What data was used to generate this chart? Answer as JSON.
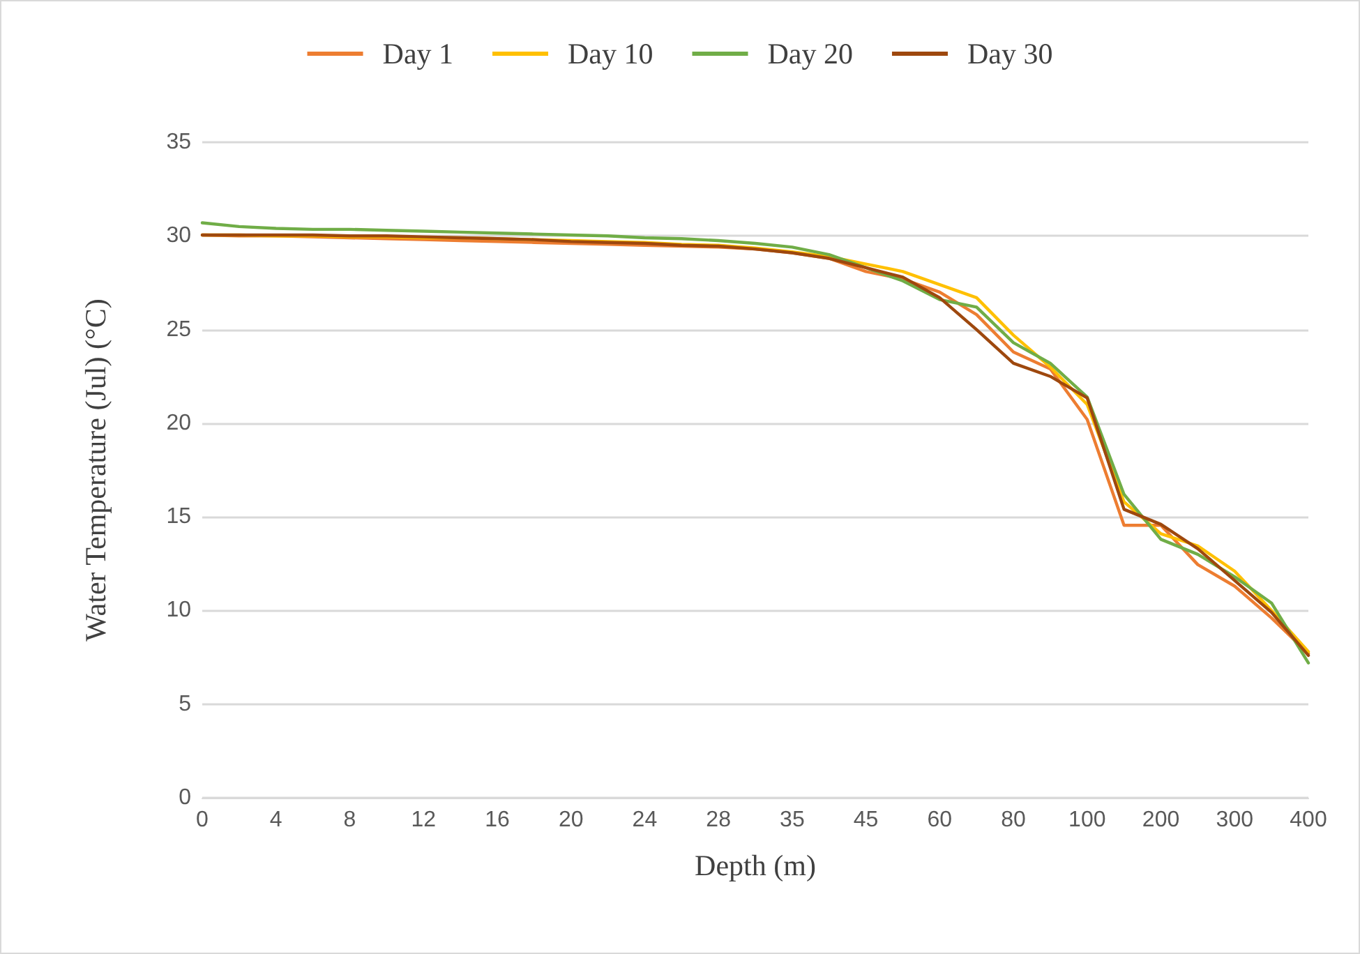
{
  "chart_data": {
    "type": "line",
    "xlabel": "Depth (m)",
    "ylabel": "Water Temperature (Jul) (°C)",
    "categories": [
      "0",
      null,
      "4",
      null,
      "8",
      null,
      "12",
      null,
      "16",
      null,
      "20",
      null,
      "24",
      null,
      "28",
      null,
      "35",
      null,
      "45",
      null,
      "60",
      null,
      "80",
      null,
      "100",
      null,
      "200",
      null,
      "300",
      null,
      "400"
    ],
    "series": [
      {
        "name": "Day 1",
        "color": "#ed7d31",
        "values": [
          30.05,
          30.0,
          30.0,
          29.95,
          29.9,
          29.85,
          29.8,
          29.75,
          29.7,
          29.65,
          29.6,
          29.55,
          29.5,
          29.45,
          29.4,
          29.3,
          29.1,
          28.8,
          28.1,
          27.7,
          27.0,
          25.8,
          23.8,
          22.9,
          20.2,
          14.55,
          14.55,
          12.45,
          11.3,
          9.6,
          7.7
        ]
      },
      {
        "name": "Day 10",
        "color": "#ffc000",
        "values": [
          30.05,
          30.05,
          30.0,
          30.0,
          29.95,
          29.95,
          29.9,
          29.9,
          29.85,
          29.8,
          29.75,
          29.7,
          29.65,
          29.55,
          29.5,
          29.35,
          29.15,
          28.9,
          28.5,
          28.1,
          27.4,
          26.7,
          24.7,
          23.0,
          21.0,
          15.8,
          14.1,
          13.45,
          12.1,
          10.0,
          7.8
        ]
      },
      {
        "name": "Day 20",
        "color": "#70ad47",
        "values": [
          30.7,
          30.5,
          30.4,
          30.35,
          30.35,
          30.3,
          30.25,
          30.2,
          30.15,
          30.1,
          30.05,
          30.0,
          29.9,
          29.85,
          29.75,
          29.6,
          29.4,
          29.0,
          28.3,
          27.6,
          26.6,
          26.2,
          24.3,
          23.2,
          21.4,
          16.2,
          13.8,
          13.0,
          11.8,
          10.4,
          7.2
        ]
      },
      {
        "name": "Day 30",
        "color": "#9e480e",
        "values": [
          30.05,
          30.05,
          30.05,
          30.05,
          30.0,
          30.0,
          29.95,
          29.9,
          29.85,
          29.8,
          29.7,
          29.65,
          29.6,
          29.5,
          29.45,
          29.3,
          29.1,
          28.8,
          28.3,
          27.8,
          26.7,
          25.0,
          23.2,
          22.5,
          21.35,
          15.4,
          14.6,
          13.3,
          11.6,
          9.9,
          7.6
        ]
      }
    ],
    "ylim": [
      0,
      35
    ],
    "yticks": [
      0,
      5,
      10,
      15,
      20,
      25,
      30,
      35
    ],
    "grid": "y",
    "legend": "top",
    "marker": "none",
    "line_style": "solid"
  }
}
